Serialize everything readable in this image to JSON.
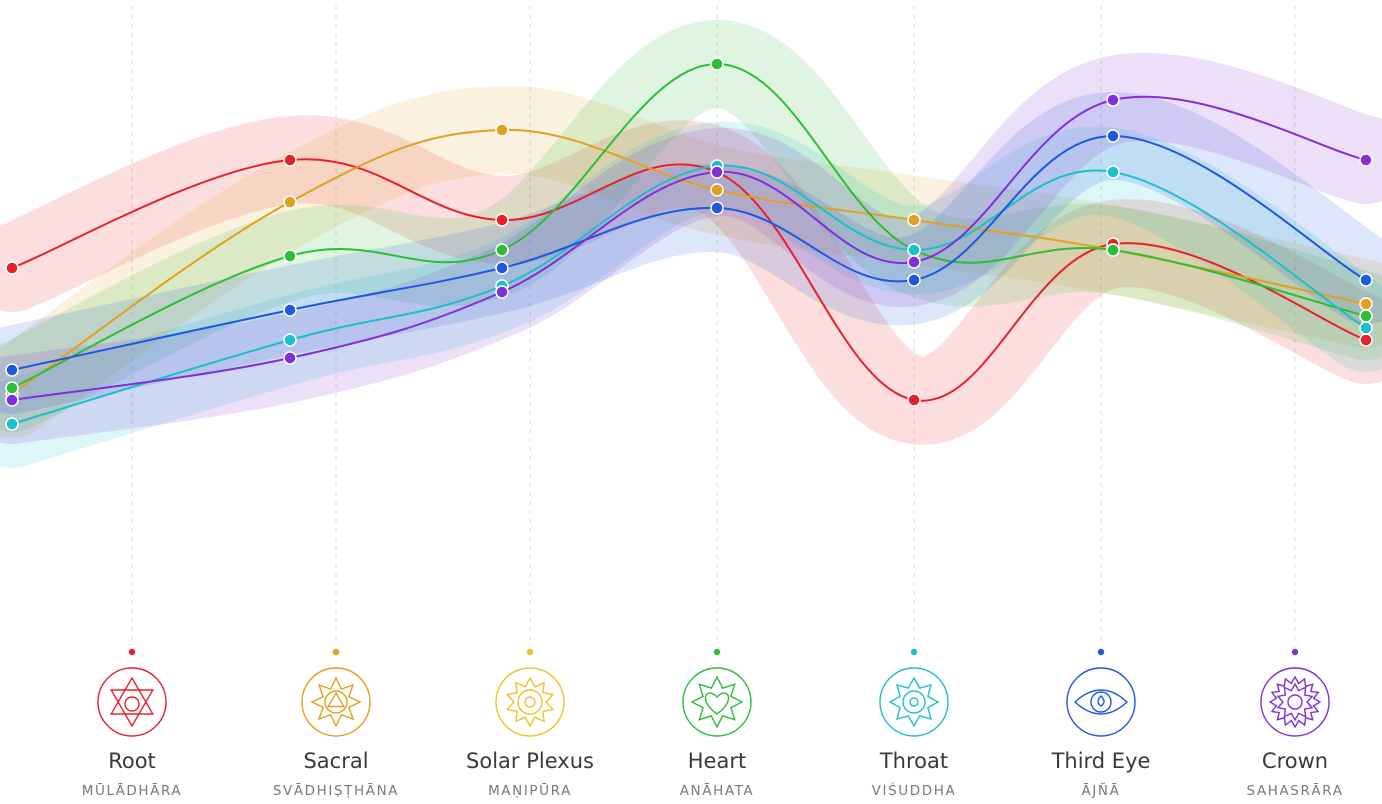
{
  "chart_data": {
    "type": "line",
    "categories": [
      "Root",
      "Sacral",
      "Solar Plexus",
      "Heart",
      "Throat",
      "Third Eye",
      "Crown"
    ],
    "subtitles": [
      "MŪLĀDHĀRA",
      "SVĀDHIṢṬHĀNA",
      "MAṆIPŪRA",
      "ANĀHATA",
      "VIŚUDDHA",
      "ĀJÑĀ",
      "SAHASRĀRA"
    ],
    "category_colors": [
      "#e8202a",
      "#e0a020",
      "#eec32a",
      "#2cbe36",
      "#1cc0c8",
      "#1e58e0",
      "#8030d8"
    ],
    "ylim": [
      0,
      100
    ],
    "grid": "vertical-dashed",
    "series": [
      {
        "color": "#e8202a",
        "values": [
          62,
          80,
          70,
          78,
          40,
          66,
          50
        ]
      },
      {
        "color": "#e0a020",
        "values": [
          41,
          73,
          85,
          75,
          70,
          65,
          56
        ]
      },
      {
        "color": "#2cbe36",
        "values": [
          42,
          64,
          65,
          96,
          65,
          65,
          54
        ]
      },
      {
        "color": "#1cc0c8",
        "values": [
          36,
          50,
          59,
          79,
          65,
          78,
          52
        ]
      },
      {
        "color": "#1e58e0",
        "values": [
          45,
          55,
          62,
          72,
          60,
          84,
          60
        ]
      },
      {
        "color": "#8030d8",
        "values": [
          40,
          47,
          58,
          78,
          63,
          90,
          80
        ]
      }
    ]
  },
  "icons": [
    "root-chakra-icon",
    "sacral-chakra-icon",
    "solar-plexus-chakra-icon",
    "heart-chakra-icon",
    "throat-chakra-icon",
    "third-eye-chakra-icon",
    "crown-chakra-icon"
  ]
}
